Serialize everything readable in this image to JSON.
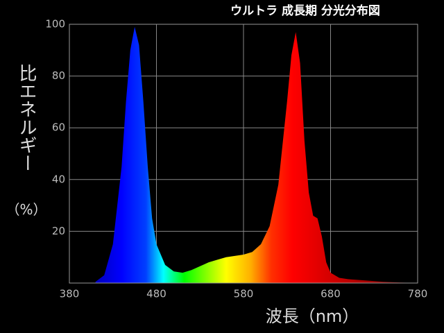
{
  "chart_data": {
    "type": "area",
    "title": "ウルトラ 成長期  分光分布図",
    "y_label": "比エネルギー",
    "y_unit": "（%）",
    "x_label": "波長（nm）",
    "x": [
      410,
      420,
      430,
      440,
      445,
      450,
      455,
      460,
      465,
      470,
      475,
      480,
      490,
      500,
      510,
      520,
      530,
      540,
      550,
      560,
      570,
      580,
      590,
      600,
      610,
      620,
      630,
      635,
      640,
      645,
      650,
      655,
      660,
      665,
      670,
      675,
      680,
      690,
      700,
      720,
      740,
      760,
      780
    ],
    "values": [
      0.5,
      3,
      15,
      45,
      70,
      90,
      99,
      92,
      70,
      45,
      25,
      15,
      7,
      4.5,
      4,
      5,
      6.5,
      8,
      9,
      10,
      10.5,
      11,
      12,
      15,
      22,
      38,
      70,
      88,
      97,
      85,
      55,
      35,
      26,
      25,
      18,
      8,
      4,
      2,
      1.5,
      1,
      0.5,
      0.2,
      0
    ],
    "xlim": [
      380,
      780
    ],
    "xticks": [
      380,
      480,
      580,
      680,
      780
    ],
    "ylim": [
      0,
      100
    ],
    "yticks": [
      20,
      40,
      60,
      80,
      100
    ],
    "grid": true
  }
}
